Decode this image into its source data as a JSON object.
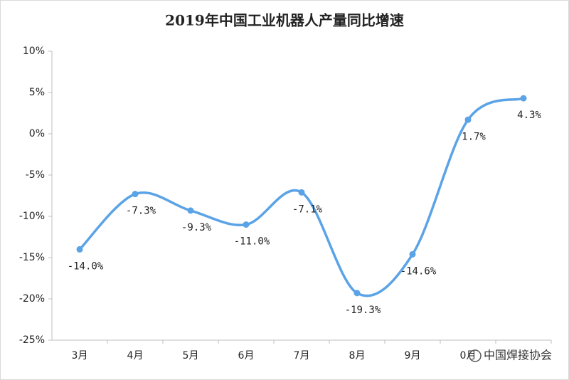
{
  "chart_data": {
    "type": "line",
    "title": "2019年中国工业机器人产量同比增速",
    "categories": [
      "3月",
      "4月",
      "5月",
      "6月",
      "7月",
      "8月",
      "9月",
      "0月",
      null
    ],
    "series": [
      {
        "color": "#5aa3e6",
        "values": [
          -14.0,
          -7.3,
          -9.3,
          -11.0,
          -7.1,
          -19.3,
          -14.6,
          1.7,
          4.3
        ],
        "value_labels": [
          "-14.0%",
          "-7.3%",
          "-9.3%",
          "-11.0%",
          "-7.1%",
          "-19.3%",
          "-14.6%",
          "1.7%",
          "4.3%"
        ]
      }
    ],
    "ylim": [
      -25,
      10
    ],
    "yticks": [
      {
        "value": -25,
        "label": "-25%"
      },
      {
        "value": -20,
        "label": "-20%"
      },
      {
        "value": -15,
        "label": "-15%"
      },
      {
        "value": -10,
        "label": "-10%"
      },
      {
        "value": -5,
        "label": "-5%"
      },
      {
        "value": 0,
        "label": "0%"
      },
      {
        "value": 5,
        "label": "5%"
      },
      {
        "value": 10,
        "label": "10%"
      }
    ],
    "grid": false,
    "watermark": "中国焊接协会"
  }
}
